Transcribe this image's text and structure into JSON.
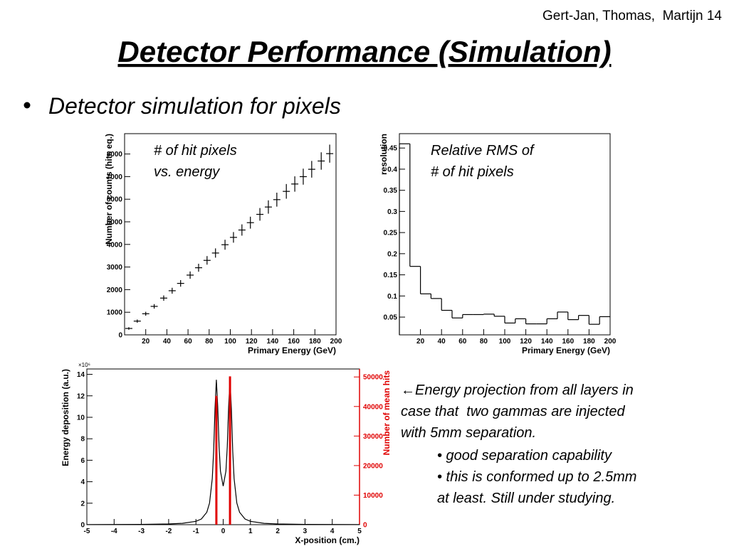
{
  "slide": {
    "author": "Gert-Jan, Thomas,  Martijn 14",
    "title": "Detector Performance (Simulation)",
    "bullet": "Detector simulation for pixels",
    "caption": [
      "←Energy projection from all layers in",
      "case that  two gammas are injected",
      "with 5mm separation."
    ],
    "sub_bullets": [
      [
        "• good separation capability"
      ],
      [
        "• this is conformed up to 2.5mm",
        "at least. Still under studying."
      ]
    ]
  },
  "chart_data": [
    {
      "type": "scatter",
      "annotation": [
        "# of hit pixels",
        "vs. energy"
      ],
      "xlabel": "Primary Energy (GeV)",
      "ylabel": "Number of counts (hits eq.)",
      "x": [
        4,
        12,
        20,
        28,
        37,
        45,
        53,
        62,
        70,
        78,
        86,
        95,
        103,
        111,
        119,
        128,
        136,
        144,
        153,
        161,
        169,
        177,
        186,
        194
      ],
      "values": [
        283,
        608,
        934,
        1260,
        1626,
        1952,
        2277,
        2643,
        2969,
        3295,
        3620,
        3987,
        4312,
        4638,
        4963,
        5330,
        5655,
        5981,
        6347,
        6673,
        6998,
        7324,
        7690,
        8016
      ],
      "errors": [
        57,
        72,
        86,
        100,
        117,
        131,
        145,
        162,
        176,
        190,
        205,
        221,
        235,
        250,
        264,
        280,
        295,
        309,
        325,
        340,
        354,
        369,
        385,
        399
      ],
      "color": "#000000",
      "xlim": [
        0,
        200
      ],
      "xticks": [
        20,
        40,
        60,
        80,
        100,
        120,
        140,
        160,
        180,
        200
      ],
      "ylim": [
        0,
        8900
      ],
      "yticks": [
        0,
        1000,
        2000,
        3000,
        4000,
        5000,
        6000,
        7000,
        8000
      ]
    },
    {
      "type": "histogram",
      "annotation": [
        "Relative RMS of",
        "# of hit pixels"
      ],
      "xlabel": "Primary Energy (GeV)",
      "ylabel": "resolution",
      "bins": [
        0,
        10,
        20,
        30,
        40,
        50,
        60,
        70,
        80,
        90,
        100,
        110,
        120,
        130,
        140,
        150,
        160,
        170,
        180,
        190,
        200
      ],
      "values": [
        0.46,
        0.17,
        0.105,
        0.094,
        0.066,
        0.048,
        0.056,
        0.056,
        0.057,
        0.052,
        0.036,
        0.046,
        0.034,
        0.034,
        0.046,
        0.062,
        0.044,
        0.054,
        0.033,
        0.051
      ],
      "color": "#000000",
      "xlim": [
        0,
        200
      ],
      "xticks": [
        20,
        40,
        60,
        80,
        100,
        120,
        140,
        160,
        180,
        200
      ],
      "ylim": [
        0.008,
        0.484
      ],
      "yticks": [
        0.05,
        0.1,
        0.15,
        0.2,
        0.25,
        0.3,
        0.35,
        0.4,
        0.45
      ]
    },
    {
      "type": "line",
      "xlabel": "X-position (cm.)",
      "ylabel": "Energy deposition (a.u.)",
      "y2label": "Number of mean hits",
      "y_multiplier": "×10⁶",
      "x": [
        -5,
        -4,
        -3,
        -2,
        -1.5,
        -1,
        -0.8,
        -0.6,
        -0.5,
        -0.4,
        -0.35,
        -0.3,
        -0.25,
        -0.2,
        -0.15,
        -0.1,
        0,
        0.1,
        0.15,
        0.2,
        0.25,
        0.3,
        0.35,
        0.4,
        0.5,
        0.6,
        0.8,
        1,
        1.5,
        2,
        3,
        4,
        5
      ],
      "series": [
        {
          "color": "#000000",
          "values": [
            0.01,
            0.016,
            0.029,
            0.068,
            0.125,
            0.31,
            0.53,
            1.16,
            2.02,
            4.3,
            6.85,
            10.82,
            13.5,
            11.01,
            7.26,
            4.98,
            3.59,
            4.98,
            7.26,
            11.01,
            13.5,
            10.82,
            6.85,
            4.3,
            2.02,
            1.16,
            0.53,
            0.31,
            0.125,
            0.068,
            0.029,
            0.016,
            0.01
          ]
        },
        {
          "color": "#e00000",
          "axis": "y2",
          "x": [
            -0.25,
            0.25
          ],
          "values": [
            43600,
            50200
          ]
        }
      ],
      "xlim": [
        -5,
        5
      ],
      "xticks": [
        -5,
        -4,
        -3,
        -2,
        -1,
        0,
        1,
        2,
        3,
        4,
        5
      ],
      "ylim": [
        0,
        14.5
      ],
      "yticks": [
        0,
        2,
        4,
        6,
        8,
        10,
        12,
        14
      ],
      "y2lim": [
        0,
        52700
      ],
      "y2ticks": [
        0,
        10000,
        20000,
        30000,
        40000,
        50000
      ]
    }
  ]
}
